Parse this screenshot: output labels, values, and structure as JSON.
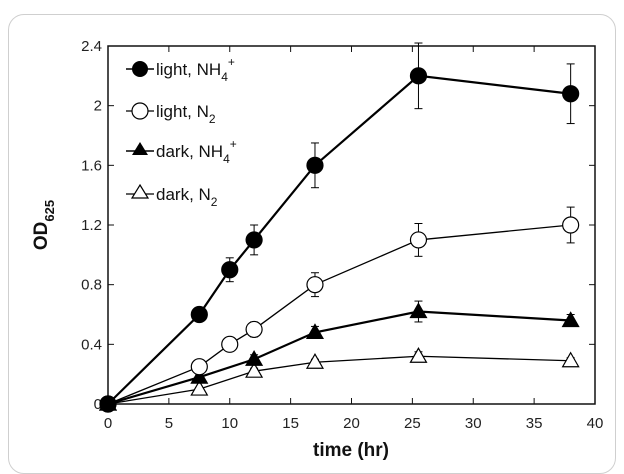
{
  "chart_data": {
    "type": "line",
    "xlabel": "time (hr)",
    "ylabel_main": "OD",
    "ylabel_sub": "625",
    "xlim": [
      0,
      40
    ],
    "ylim": [
      0,
      2.4
    ],
    "xticks": [
      "0",
      "5",
      "10",
      "15",
      "20",
      "25",
      "30",
      "35",
      "40"
    ],
    "yticks": [
      "0",
      "0.4",
      "0.8",
      "1.2",
      "1.6",
      "2",
      "2.4"
    ],
    "legend_position": "top-left",
    "series": [
      {
        "name_main": "light, NH",
        "name_sub": "4",
        "name_sup": "+",
        "marker": "filled-circle",
        "x": [
          0,
          7.5,
          10,
          12,
          17,
          25.5,
          38
        ],
        "y": [
          0,
          0.6,
          0.9,
          1.1,
          1.6,
          2.2,
          2.08
        ],
        "err": [
          0,
          0.03,
          0.08,
          0.1,
          0.15,
          0.22,
          0.2
        ]
      },
      {
        "name_main": "light, N",
        "name_sub": "2",
        "name_sup": "",
        "marker": "open-circle",
        "x": [
          0,
          7.5,
          10,
          12,
          17,
          25.5,
          38
        ],
        "y": [
          0,
          0.25,
          0.4,
          0.5,
          0.8,
          1.1,
          1.2
        ],
        "err": [
          0,
          0.03,
          0.04,
          0.05,
          0.08,
          0.11,
          0.12
        ]
      },
      {
        "name_main": "dark, NH",
        "name_sub": "4",
        "name_sup": "+",
        "marker": "filled-triangle",
        "x": [
          0,
          7.5,
          12,
          17,
          25.5,
          38
        ],
        "y": [
          0,
          0.18,
          0.3,
          0.48,
          0.62,
          0.56
        ],
        "err": [
          0,
          0.02,
          0.03,
          0.04,
          0.07,
          0.04
        ]
      },
      {
        "name_main": "dark, N",
        "name_sub": "2",
        "name_sup": "",
        "marker": "open-triangle",
        "x": [
          0,
          7.5,
          12,
          17,
          25.5,
          38
        ],
        "y": [
          0,
          0.1,
          0.22,
          0.28,
          0.32,
          0.29
        ],
        "err": [
          0,
          0.01,
          0.02,
          0.02,
          0.03,
          0.02
        ]
      }
    ]
  }
}
